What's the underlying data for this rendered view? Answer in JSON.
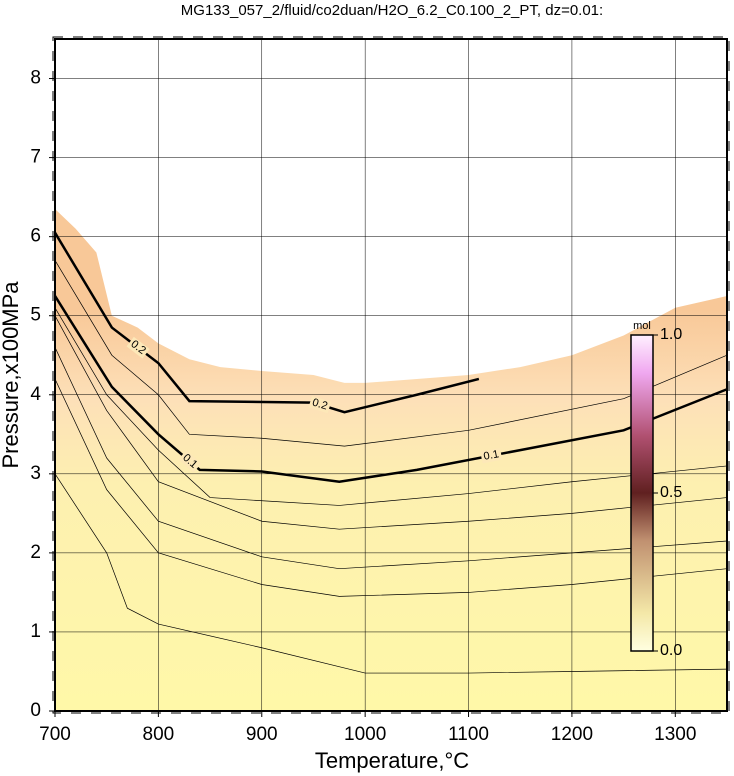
{
  "chart_data": {
    "type": "contour",
    "title": "MG133_057_2/fluid/co2duan/H2O_6.2_C0.100_2_PT, dz=0.01:",
    "xlabel": "Temperature,°C",
    "ylabel": "Pressure,x100MPa",
    "xlim": [
      700,
      1350
    ],
    "ylim": [
      0,
      8.5
    ],
    "xticks": [
      700,
      800,
      900,
      1000,
      1100,
      1200,
      1300
    ],
    "yticks": [
      0,
      1,
      2,
      3,
      4,
      5,
      6,
      7,
      8
    ],
    "grid": true,
    "line_color": "#000000",
    "field": {
      "x": [
        700,
        720,
        740,
        755,
        780,
        800,
        830,
        860,
        900,
        950,
        980,
        1000,
        1050,
        1100,
        1150,
        1200,
        1250,
        1300,
        1350
      ],
      "y": [
        6.35,
        6.1,
        5.8,
        5.0,
        4.85,
        4.65,
        4.45,
        4.35,
        4.3,
        4.25,
        4.15,
        4.15,
        4.2,
        4.25,
        4.35,
        4.5,
        4.75,
        5.1,
        5.25
      ]
    },
    "contours": [
      {
        "level": 0.01,
        "x": [
          700,
          750,
          770,
          800,
          900,
          1000,
          1100,
          1200,
          1350
        ],
        "y": [
          3.0,
          2.0,
          1.3,
          1.1,
          0.8,
          0.48,
          0.48,
          0.5,
          0.53
        ]
      },
      {
        "level": 0.02,
        "x": [
          700,
          750,
          800,
          900,
          975,
          1100,
          1200,
          1350
        ],
        "y": [
          4.2,
          2.8,
          2.0,
          1.6,
          1.45,
          1.5,
          1.6,
          1.8
        ]
      },
      {
        "level": 0.03,
        "x": [
          700,
          750,
          800,
          900,
          975,
          1100,
          1200,
          1350
        ],
        "y": [
          4.6,
          3.2,
          2.4,
          1.95,
          1.8,
          1.9,
          2.0,
          2.15
        ]
      },
      {
        "level": 0.05,
        "x": [
          700,
          750,
          800,
          900,
          975,
          1100,
          1200,
          1350
        ],
        "y": [
          5.0,
          3.8,
          2.9,
          2.4,
          2.3,
          2.4,
          2.5,
          2.7
        ]
      },
      {
        "level": 0.07,
        "x": [
          700,
          750,
          800,
          850,
          975,
          1100,
          1200,
          1350
        ],
        "y": [
          5.1,
          4.0,
          3.3,
          2.7,
          2.6,
          2.75,
          2.9,
          3.1
        ]
      },
      {
        "level": 0.1,
        "labeled": true,
        "x": [
          700,
          755,
          800,
          840,
          900,
          975,
          1050,
          1150,
          1250,
          1350
        ],
        "y": [
          5.25,
          4.1,
          3.5,
          3.05,
          3.03,
          2.9,
          3.05,
          3.3,
          3.55,
          4.07
        ]
      },
      {
        "level": 0.15,
        "x": [
          700,
          755,
          800,
          830,
          900,
          980,
          1100,
          1250,
          1350
        ],
        "y": [
          5.7,
          4.5,
          4.0,
          3.5,
          3.45,
          3.35,
          3.55,
          3.95,
          4.5
        ]
      },
      {
        "level": 0.2,
        "labeled": true,
        "x": [
          700,
          755,
          800,
          830,
          950,
          980,
          1050,
          1110
        ],
        "y": [
          6.05,
          4.85,
          4.4,
          3.92,
          3.9,
          3.78,
          4.0,
          4.2
        ]
      }
    ],
    "colorbar": {
      "label": "mol",
      "clim": [
        0,
        1
      ],
      "ticks": [
        {
          "value": 0,
          "label": "0.0"
        },
        {
          "value": 0.5,
          "label": "0.5"
        },
        {
          "value": 1,
          "label": "1.0"
        }
      ]
    }
  }
}
